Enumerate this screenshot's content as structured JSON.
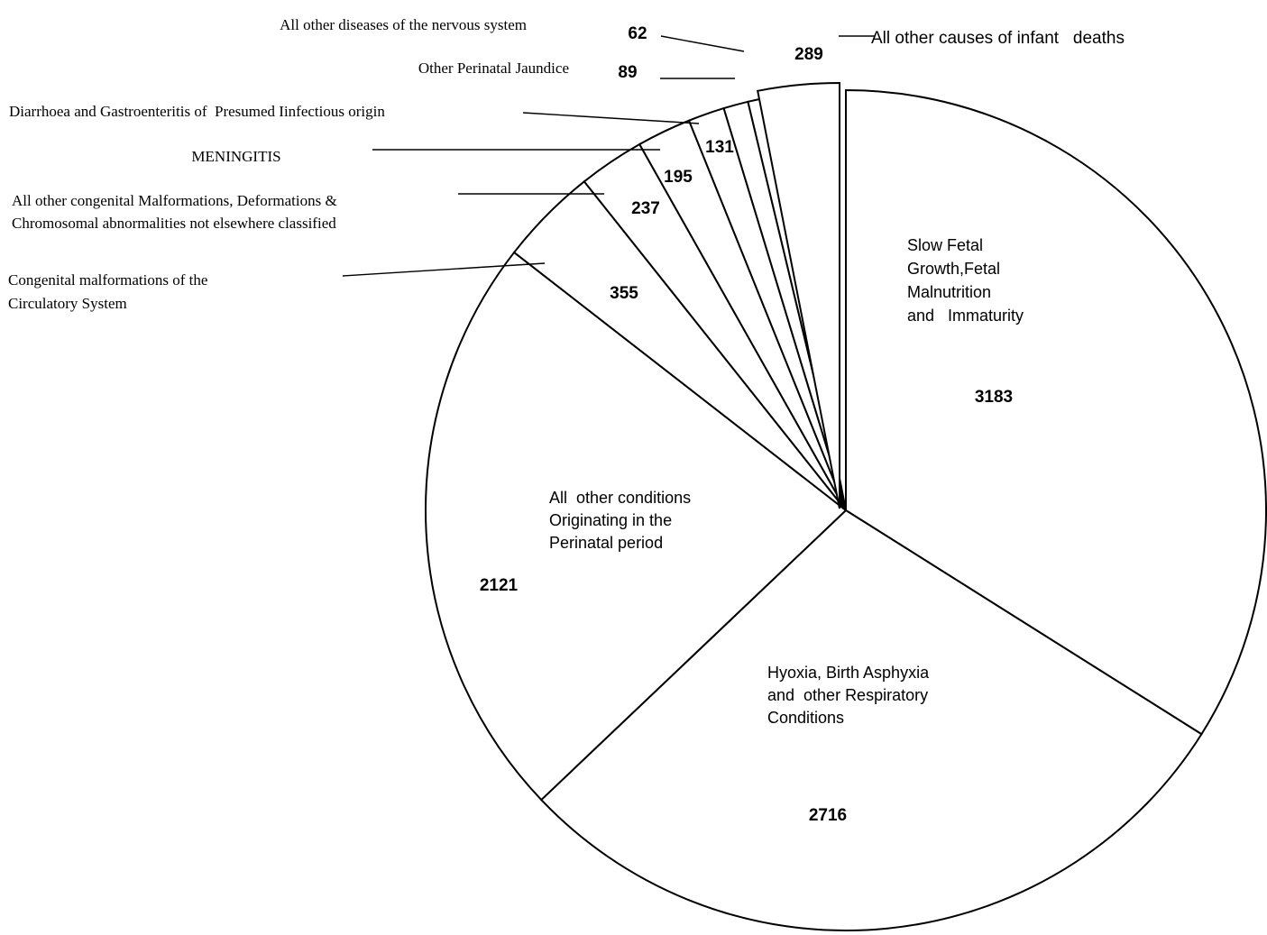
{
  "chart_data": {
    "type": "pie",
    "slices": [
      {
        "label_lines": [
          "Slow Fetal",
          "Growth,Fetal",
          "Malnutrition",
          "and   Immaturity"
        ],
        "value": 3183,
        "value_text": "3183"
      },
      {
        "label_lines": [
          "Hyoxia, Birth Asphyxia",
          "and  other Respiratory",
          "Conditions"
        ],
        "value": 2716,
        "value_text": "2716"
      },
      {
        "label_lines": [
          "All  other conditions",
          "Originating in the",
          "Perinatal period"
        ],
        "value": 2121,
        "value_text": "2121"
      },
      {
        "label_lines": [
          "Congenital malformations of the",
          "Circulatory System"
        ],
        "value": 355,
        "value_text": "355"
      },
      {
        "label_lines": [
          "All other congenital Malformations, Deformations &",
          "Chromosomal abnormalities not elsewhere classified"
        ],
        "value": 237,
        "value_text": "237"
      },
      {
        "label_lines": [
          "MENINGITIS"
        ],
        "value": 195,
        "value_text": "195"
      },
      {
        "label_lines": [
          "Diarrhoea and Gastroenteritis of  Presumed Iinfectious origin"
        ],
        "value": 131,
        "value_text": "131"
      },
      {
        "label_lines": [
          "Other Perinatal Jaundice"
        ],
        "value": 89,
        "value_text": "89"
      },
      {
        "label_lines": [
          "All other diseases of the nervous system"
        ],
        "value": 62,
        "value_text": "62"
      },
      {
        "label_lines": [
          "All other causes of infant   deaths"
        ],
        "value": 289,
        "value_text": "289",
        "exploded": true
      }
    ]
  }
}
